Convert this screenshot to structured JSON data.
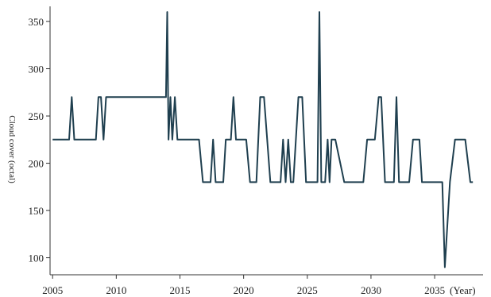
{
  "chart_data": {
    "type": "line",
    "title": "",
    "xlabel": "(Year)",
    "ylabel": "Cloud cover (octal)",
    "xlim": [
      2004.8,
      2038.8
    ],
    "ylim": [
      82,
      366
    ],
    "xticks": [
      2005,
      2010,
      2015,
      2020,
      2025,
      2030,
      2035
    ],
    "yticks": [
      100,
      150,
      200,
      250,
      300,
      350
    ],
    "grid": false,
    "legend": "none",
    "line_color": "#1f3f4f",
    "series": [
      {
        "x": [
          2005.0,
          2006.3,
          2006.5,
          2006.7,
          2008.4,
          2008.6,
          2008.8,
          2009.0,
          2009.2,
          2013.9,
          2014.0,
          2014.1,
          2014.25,
          2014.4,
          2014.6,
          2014.8,
          2015.0,
          2015.2,
          2015.35,
          2016.5,
          2016.8,
          2017.4,
          2017.6,
          2017.8,
          2018.4,
          2018.6,
          2019.0,
          2019.2,
          2019.4,
          2019.6,
          2020.2,
          2020.5,
          2021.0,
          2021.3,
          2021.6,
          2022.1,
          2022.4,
          2022.9,
          2023.1,
          2023.3,
          2023.5,
          2023.7,
          2023.9,
          2024.3,
          2024.6,
          2024.9,
          2025.4,
          2025.8,
          2025.95,
          2026.1,
          2026.4,
          2026.6,
          2026.75,
          2026.9,
          2027.2,
          2027.9,
          2028.2,
          2029.4,
          2029.7,
          2030.3,
          2030.6,
          2030.8,
          2031.1,
          2031.8,
          2032.0,
          2032.2,
          2033.0,
          2033.3,
          2033.8,
          2034.0,
          2035.4,
          2035.6,
          2035.8,
          2036.2,
          2036.6,
          2037.4,
          2037.8,
          2038.0
        ],
        "y": [
          225,
          225,
          270,
          225,
          225,
          270,
          270,
          225,
          270,
          270,
          360,
          225,
          270,
          225,
          270,
          225,
          225,
          225,
          225,
          225,
          180,
          180,
          225,
          180,
          180,
          225,
          225,
          270,
          225,
          225,
          225,
          180,
          180,
          270,
          270,
          180,
          180,
          180,
          225,
          180,
          225,
          180,
          180,
          270,
          270,
          180,
          180,
          180,
          360,
          180,
          180,
          225,
          180,
          225,
          225,
          180,
          180,
          180,
          225,
          225,
          270,
          270,
          180,
          180,
          270,
          180,
          180,
          225,
          225,
          180,
          180,
          180,
          90,
          180,
          225,
          225,
          180,
          180
        ]
      }
    ]
  }
}
